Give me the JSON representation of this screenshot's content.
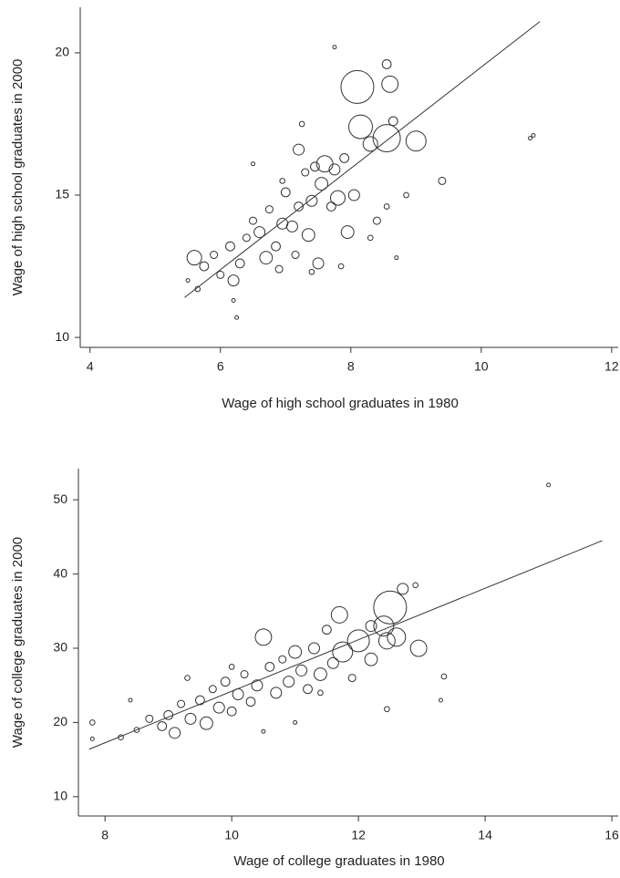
{
  "chart_data": [
    {
      "type": "scatter",
      "xlabel": "Wage of high school graduates in 1980",
      "ylabel": "Wage of high school graduates in 2000",
      "xlim": [
        3.85,
        12.1
      ],
      "ylim": [
        9.65,
        21.6
      ],
      "xticks": [
        4,
        6,
        8,
        10,
        12
      ],
      "yticks": [
        10,
        15,
        20
      ],
      "x": [
        5.6,
        5.75,
        5.5,
        5.65,
        5.9,
        6.0,
        6.2,
        6.15,
        6.3,
        6.4,
        6.5,
        6.6,
        6.7,
        6.75,
        6.85,
        6.9,
        6.95,
        7.0,
        7.1,
        7.15,
        7.2,
        7.3,
        7.35,
        7.4,
        7.45,
        7.5,
        7.55,
        7.6,
        7.7,
        7.75,
        7.8,
        7.9,
        7.95,
        8.05,
        8.1,
        8.15,
        8.3,
        8.55,
        8.6,
        8.55,
        8.65,
        9.0,
        8.4,
        8.55,
        8.7,
        9.4,
        10.75,
        10.8,
        7.75,
        6.25,
        6.2,
        7.25,
        7.2,
        6.5,
        6.95,
        7.4,
        7.85,
        8.85,
        8.3
      ],
      "values": [
        12.8,
        12.5,
        12.0,
        11.7,
        12.9,
        12.2,
        12.0,
        13.2,
        12.6,
        13.5,
        14.1,
        13.7,
        12.8,
        14.5,
        13.2,
        12.4,
        14.0,
        15.1,
        13.9,
        12.9,
        14.6,
        15.8,
        13.6,
        14.8,
        16.0,
        12.6,
        15.4,
        16.1,
        14.6,
        15.9,
        14.9,
        16.3,
        13.7,
        15.0,
        18.8,
        17.4,
        16.8,
        17.0,
        18.9,
        19.6,
        17.6,
        16.9,
        14.1,
        14.6,
        12.8,
        15.5,
        17.0,
        17.1,
        20.2,
        10.7,
        11.3,
        17.5,
        16.6,
        16.1,
        15.5,
        12.3,
        12.5,
        15.0,
        13.5
      ],
      "sizes": [
        16,
        6,
        1,
        2,
        4,
        4,
        9,
        6,
        6,
        4,
        4,
        9,
        12,
        4,
        6,
        4,
        9,
        6,
        9,
        4,
        6,
        4,
        12,
        9,
        6,
        9,
        12,
        20,
        6,
        9,
        16,
        6,
        12,
        9,
        81,
        42,
        16,
        56,
        20,
        6,
        6,
        30,
        4,
        2,
        1,
        4,
        1,
        1,
        1,
        1,
        1,
        2,
        9,
        1,
        2,
        2,
        2,
        2,
        2
      ],
      "fit_line": {
        "x": [
          5.45,
          10.9
        ],
        "y": [
          11.4,
          21.1
        ]
      }
    },
    {
      "type": "scatter",
      "xlabel": "Wage of college graduates in 1980",
      "ylabel": "Wage of college graduates in 2000",
      "xlim": [
        7.58,
        16.1
      ],
      "ylim": [
        7.4,
        54.2
      ],
      "xticks": [
        8,
        10,
        12,
        14,
        16
      ],
      "yticks": [
        10,
        20,
        30,
        40,
        50
      ],
      "x": [
        7.8,
        7.8,
        8.25,
        8.5,
        8.7,
        8.9,
        9.0,
        9.1,
        9.2,
        9.35,
        9.5,
        9.6,
        9.7,
        9.8,
        9.9,
        10.0,
        10.1,
        10.2,
        10.3,
        10.4,
        10.5,
        10.6,
        10.7,
        10.8,
        10.9,
        11.0,
        11.1,
        11.2,
        11.3,
        11.4,
        11.5,
        11.6,
        11.7,
        11.75,
        11.9,
        12.0,
        12.2,
        12.2,
        12.4,
        12.45,
        12.5,
        12.6,
        12.7,
        12.9,
        12.95,
        13.35,
        13.3,
        12.45,
        15.0,
        10.5,
        11.4,
        9.3,
        8.4,
        10.0,
        11.0
      ],
      "values": [
        20.0,
        17.8,
        18.0,
        19.0,
        20.5,
        19.5,
        21.0,
        18.6,
        22.5,
        20.5,
        23.0,
        19.9,
        24.5,
        22.0,
        25.5,
        21.5,
        23.8,
        26.5,
        22.8,
        25.0,
        31.5,
        27.5,
        24.0,
        28.5,
        25.5,
        29.5,
        27.0,
        24.5,
        30.0,
        26.5,
        32.5,
        28.0,
        34.5,
        29.5,
        26.0,
        31.0,
        33.0,
        28.5,
        33.0,
        31.0,
        35.5,
        31.5,
        38.0,
        38.5,
        30.0,
        26.2,
        23.0,
        21.8,
        52.0,
        18.8,
        24.0,
        26.0,
        23.0,
        27.5,
        20.0
      ],
      "sizes": [
        2,
        1,
        2,
        2,
        4,
        6,
        6,
        9,
        4,
        9,
        6,
        12,
        4,
        9,
        6,
        6,
        9,
        4,
        6,
        9,
        20,
        6,
        9,
        4,
        9,
        12,
        9,
        6,
        9,
        12,
        6,
        9,
        20,
        30,
        4,
        36,
        9,
        12,
        30,
        20,
        81,
        25,
        9,
        2,
        20,
        2,
        1,
        2,
        1,
        1,
        2,
        2,
        1,
        2,
        1
      ],
      "fit_line": {
        "x": [
          7.75,
          15.85
        ],
        "y": [
          16.4,
          44.5
        ]
      }
    }
  ]
}
